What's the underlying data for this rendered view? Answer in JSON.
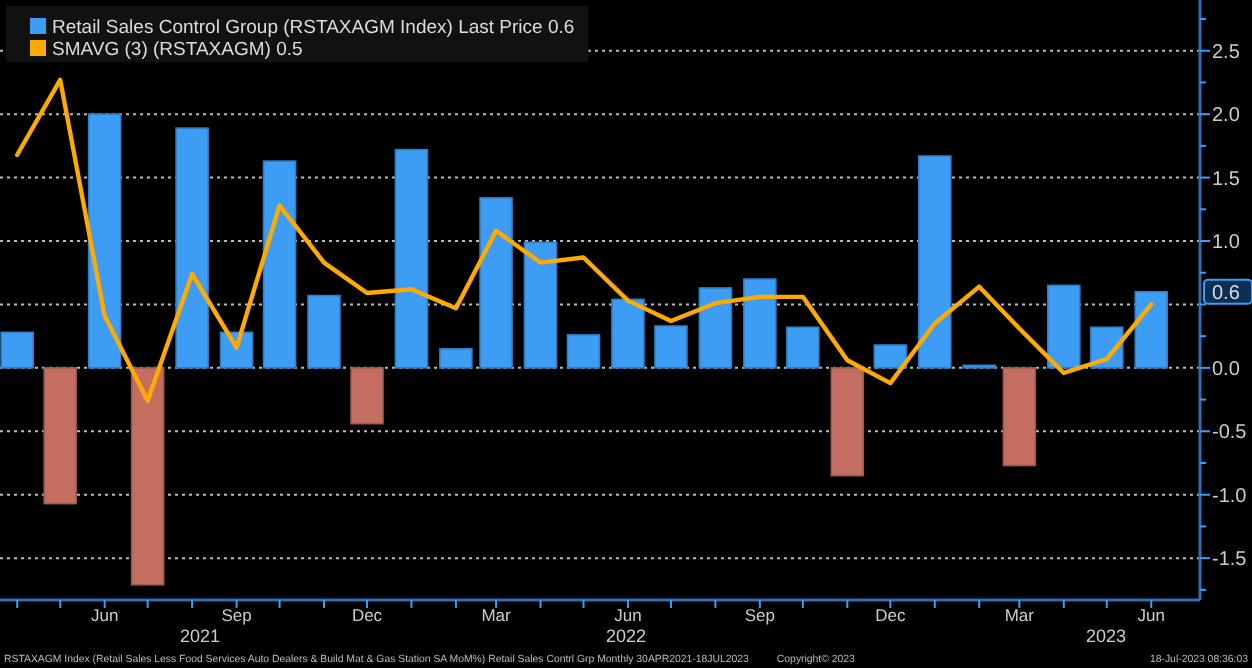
{
  "chart_data": {
    "type": "bar",
    "x": [
      "2021-04",
      "2021-05",
      "2021-06",
      "2021-07",
      "2021-08",
      "2021-09",
      "2021-10",
      "2021-11",
      "2021-12",
      "2022-01",
      "2022-02",
      "2022-03",
      "2022-04",
      "2022-05",
      "2022-06",
      "2022-07",
      "2022-08",
      "2022-09",
      "2022-10",
      "2022-11",
      "2022-12",
      "2023-01",
      "2023-02",
      "2023-03",
      "2023-04",
      "2023-05",
      "2023-06"
    ],
    "series": [
      {
        "name": "Retail Sales Control Group (RSTAXAGM Index) Last Price 0.6",
        "color": "#3d9df5",
        "colors": [
          "#3d9df5",
          "#c46e62",
          "#3d9df5",
          "#c46e62",
          "#3d9df5",
          "#3d9df5",
          "#3d9df5",
          "#3d9df5",
          "#c46e62",
          "#3d9df5",
          "#3d9df5",
          "#3d9df5",
          "#3d9df5",
          "#3d9df5",
          "#3d9df5",
          "#3d9df5",
          "#3d9df5",
          "#3d9df5",
          "#3d9df5",
          "#c46e62",
          "#3d9df5",
          "#3d9df5",
          "#3d9df5",
          "#c46e62",
          "#3d9df5",
          "#3d9df5",
          "#3d9df5"
        ],
        "values": [
          0.28,
          -1.07,
          2.0,
          -1.71,
          1.89,
          0.28,
          1.63,
          0.57,
          -0.44,
          1.72,
          0.15,
          1.34,
          0.99,
          0.26,
          0.54,
          0.33,
          0.63,
          0.7,
          0.32,
          -0.85,
          0.18,
          1.67,
          0.02,
          -0.77,
          0.65,
          0.32,
          0.6
        ]
      },
      {
        "name": "SMAVG (3) (RSTAXAGM) 0.5",
        "type": "line",
        "color": "#ffaa00",
        "values": [
          1.68,
          2.27,
          0.41,
          -0.26,
          0.74,
          0.16,
          1.28,
          0.83,
          0.59,
          0.62,
          0.47,
          1.08,
          0.83,
          0.87,
          0.53,
          0.37,
          0.51,
          0.56,
          0.56,
          0.06,
          -0.12,
          0.35,
          0.64,
          0.31,
          -0.04,
          0.07,
          0.5
        ]
      }
    ],
    "xlim": [
      "2021-03-20",
      "2023-07-05"
    ],
    "xticks": [
      {
        "value": "2021-04",
        "label": null
      },
      {
        "value": "2021-05",
        "label": null
      },
      {
        "value": "2021-06",
        "label": "Jun"
      },
      {
        "value": "2021-07",
        "label": null
      },
      {
        "value": "2021-08",
        "label": null
      },
      {
        "value": "2021-09",
        "label": "Sep"
      },
      {
        "value": "2021-10",
        "label": null
      },
      {
        "value": "2021-11",
        "label": null
      },
      {
        "value": "2021-12",
        "label": "Dec"
      },
      {
        "value": "2022-01",
        "label": null
      },
      {
        "value": "2022-02",
        "label": null
      },
      {
        "value": "2022-03",
        "label": "Mar"
      },
      {
        "value": "2022-04",
        "label": null
      },
      {
        "value": "2022-05",
        "label": null
      },
      {
        "value": "2022-06",
        "label": "Jun"
      },
      {
        "value": "2022-07",
        "label": null
      },
      {
        "value": "2022-08",
        "label": null
      },
      {
        "value": "2022-09",
        "label": "Sep"
      },
      {
        "value": "2022-10",
        "label": null
      },
      {
        "value": "2022-11",
        "label": null
      },
      {
        "value": "2022-12",
        "label": "Dec"
      },
      {
        "value": "2023-01",
        "label": null
      },
      {
        "value": "2023-02",
        "label": null
      },
      {
        "value": "2023-03",
        "label": "Mar"
      },
      {
        "value": "2023-04",
        "label": null
      },
      {
        "value": "2023-05",
        "label": null
      },
      {
        "value": "2023-06",
        "label": "Jun"
      }
    ],
    "ylim": [
      -1.83,
      2.9
    ],
    "yticks": [
      {
        "value": -1.75,
        "label": null
      },
      {
        "value": -1.5,
        "label": "-1.5"
      },
      {
        "value": -1.25,
        "label": null
      },
      {
        "value": -1,
        "label": "-1.0"
      },
      {
        "value": -0.75,
        "label": null
      },
      {
        "value": -0.5,
        "label": "-0.5"
      },
      {
        "value": -0.25,
        "label": null
      },
      {
        "value": 0,
        "label": "0.0"
      },
      {
        "value": 0.25,
        "label": null
      },
      {
        "value": 0.5,
        "label": null
      },
      {
        "value": 0.75,
        "label": null
      },
      {
        "value": 1,
        "label": "1.0"
      },
      {
        "value": 1.25,
        "label": null
      },
      {
        "value": 1.5,
        "label": "1.5"
      },
      {
        "value": 1.75,
        "label": null
      },
      {
        "value": 2,
        "label": "2.0"
      },
      {
        "value": 2.25,
        "label": null
      },
      {
        "value": 2.5,
        "label": "2.5"
      },
      {
        "value": 2.75,
        "label": null
      }
    ],
    "grid": "y",
    "legend": "top left",
    "annotations": [
      "2021",
      "2022",
      "2023",
      {
        "text": "0.6",
        "y": 0.6
      },
      "RSTAXAGM Index (Retail Sales Less Food Services Auto Dealers & Build Mat & Gas Station SA MoM%) Retail Sales Contrl Grp  Monthly 30APR2021-18JUL2023",
      "Copyright© 2023",
      "18-Jul-2023 08:36:03"
    ]
  }
}
